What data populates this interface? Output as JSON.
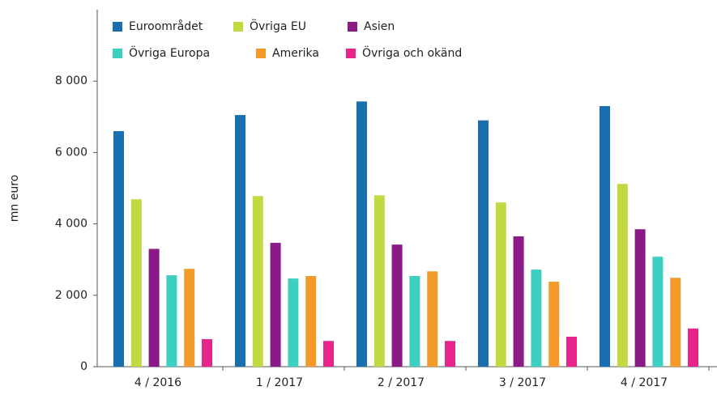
{
  "chart_data": {
    "type": "bar",
    "ylabel": "mn euro",
    "categories": [
      "4 / 2016",
      "1 / 2017",
      "2 / 2017",
      "3 / 2017",
      "4 / 2017"
    ],
    "series": [
      {
        "name": "Euroområdet",
        "color": "#1a6fae",
        "values": [
          6600,
          7050,
          7430,
          6900,
          7300
        ]
      },
      {
        "name": "Övriga EU",
        "color": "#c3d941",
        "values": [
          4690,
          4780,
          4800,
          4600,
          5120
        ]
      },
      {
        "name": "Asien",
        "color": "#8b1a89",
        "values": [
          3300,
          3470,
          3420,
          3650,
          3850
        ]
      },
      {
        "name": "Övriga Europa",
        "color": "#3dcfc0",
        "values": [
          2560,
          2470,
          2540,
          2720,
          3080
        ]
      },
      {
        "name": "Amerika",
        "color": "#f39a2a",
        "values": [
          2740,
          2540,
          2670,
          2380,
          2490
        ]
      },
      {
        "name": "Övriga och okänd",
        "color": "#e6248a",
        "values": [
          770,
          720,
          720,
          840,
          1070
        ]
      }
    ],
    "ylim": [
      0,
      10000
    ],
    "yticks": [
      0,
      {
        "value": 2000,
        "label": "2 000"
      },
      {
        "value": 4000,
        "label": "4 000"
      },
      {
        "value": 6000,
        "label": "6 000"
      },
      {
        "value": 8000,
        "label": "8 000"
      }
    ],
    "legend": "top-left",
    "grid": false
  }
}
